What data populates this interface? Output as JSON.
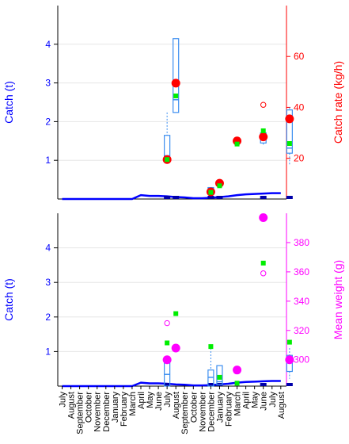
{
  "chart_data": [
    {
      "type": "box+line",
      "left_axis": {
        "label": "Catch (t)",
        "ticks": [
          1,
          2,
          3,
          4
        ],
        "range": [
          0,
          5
        ],
        "color": "#0000ff"
      },
      "right_axis": {
        "label": "Catch rate (kg/h)",
        "ticks": [
          20,
          40,
          60
        ],
        "range": [
          4,
          80
        ],
        "color": "#ff0000"
      },
      "catch_line": [
        0,
        0,
        0,
        0,
        0,
        0,
        0,
        0,
        0,
        0.1,
        0.08,
        0.08,
        0.07,
        0.05,
        0.04,
        0.02,
        0.02,
        0.03,
        0.05,
        0.07,
        0.1,
        0.12,
        0.13,
        0.14,
        0.15,
        0.15
      ],
      "boxes": [
        {
          "i": 12,
          "q1": 20,
          "q3": 29,
          "median": 21,
          "lo": 19,
          "hi": 38
        },
        {
          "i": 13,
          "q1": 38,
          "q3": 67,
          "median": 43,
          "lo": 38,
          "hi": 67
        },
        {
          "i": 17,
          "q1": 8,
          "q3": 8.5,
          "median": 8.3,
          "lo": 8,
          "hi": 8.5
        },
        {
          "i": 18,
          "q1": 10,
          "q3": 11,
          "median": 10.5,
          "lo": 10,
          "hi": 11
        },
        {
          "i": 23,
          "q1": 26,
          "q3": 30,
          "median": 28,
          "lo": 25,
          "hi": 31
        },
        {
          "i": 26,
          "q1": 22,
          "q3": 39,
          "median": 24,
          "lo": 17,
          "hi": 40
        }
      ],
      "mean_points": [
        {
          "i": 12,
          "v": 19.5
        },
        {
          "i": 13,
          "v": 49.5
        },
        {
          "i": 17,
          "v": 6.8
        },
        {
          "i": 18,
          "v": 10.2
        },
        {
          "i": 20,
          "v": 26.8
        },
        {
          "i": 23,
          "v": 28.4
        },
        {
          "i": 26,
          "v": 35.5
        }
      ],
      "green_points": [
        {
          "i": 12,
          "v": 19.5
        },
        {
          "i": 13,
          "v": 44.5
        },
        {
          "i": 17,
          "v": 6.6
        },
        {
          "i": 18,
          "v": 9.2
        },
        {
          "i": 20,
          "v": 25.6
        },
        {
          "i": 23,
          "v": 30.8
        },
        {
          "i": 26,
          "v": 25.8
        }
      ],
      "open_points": [
        {
          "i": 23,
          "v": 41.0
        }
      ]
    },
    {
      "type": "box+line",
      "left_axis": {
        "label": "Catch (t)",
        "ticks": [
          1,
          2,
          3,
          4
        ],
        "range": [
          0,
          5
        ],
        "color": "#0000ff"
      },
      "right_axis": {
        "label": "Mean weight (g)",
        "ticks": [
          300,
          320,
          340,
          360,
          380
        ],
        "range": [
          282,
          400
        ],
        "color": "#ff00ff"
      },
      "catch_line": [
        0,
        0,
        0,
        0,
        0,
        0,
        0,
        0,
        0,
        0.1,
        0.08,
        0.08,
        0.07,
        0.05,
        0.04,
        0.02,
        0.02,
        0.03,
        0.05,
        0.07,
        0.1,
        0.12,
        0.13,
        0.14,
        0.15,
        0.15
      ],
      "boxes": [
        {
          "i": 12,
          "q1": 282,
          "q3": 300,
          "median": 290,
          "lo": 282,
          "hi": 300
        },
        {
          "i": 17,
          "q1": 282,
          "q3": 293,
          "median": 288,
          "lo": 282,
          "hi": 308
        },
        {
          "i": 18,
          "q1": 283,
          "q3": 296,
          "median": 285,
          "lo": 283,
          "hi": 296
        },
        {
          "i": 23,
          "q1": 396,
          "q3": 398,
          "median": 397,
          "lo": 396,
          "hi": 398
        },
        {
          "i": 26,
          "q1": 292,
          "q3": 303,
          "median": 298,
          "lo": 287,
          "hi": 308
        }
      ],
      "mean_points": [
        {
          "i": 12,
          "v": 300
        },
        {
          "i": 13,
          "v": 308
        },
        {
          "i": 20,
          "v": 293
        },
        {
          "i": 23,
          "v": 397
        },
        {
          "i": 26,
          "v": 300
        }
      ],
      "green_points": [
        {
          "i": 12,
          "v": 311.5
        },
        {
          "i": 13,
          "v": 331.5
        },
        {
          "i": 17,
          "v": 309
        },
        {
          "i": 18,
          "v": 288
        },
        {
          "i": 20,
          "v": 284
        },
        {
          "i": 23,
          "v": 366
        },
        {
          "i": 26,
          "v": 312
        }
      ],
      "open_points": [
        {
          "i": 12,
          "v": 325
        },
        {
          "i": 23,
          "v": 359
        }
      ]
    }
  ],
  "x_tick_labels": [
    "July",
    "August",
    "September",
    "October",
    "November",
    "December",
    "January",
    "February",
    "March",
    "April",
    "May",
    "June",
    "July",
    "August",
    "September",
    "October",
    "November",
    "December",
    "January",
    "February",
    "March",
    "April",
    "May",
    "June",
    "July",
    "August"
  ],
  "colors": {
    "catch": "#0000ff",
    "box": "#3c8ef0",
    "rate": "#ff0000",
    "weight": "#ff00ff",
    "green": "#00ee00",
    "axis": "#000000",
    "grid": "#e6e6e6"
  }
}
